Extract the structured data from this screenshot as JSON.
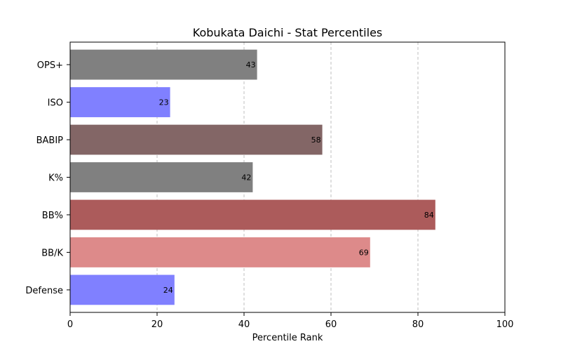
{
  "chart_data": {
    "type": "bar",
    "orientation": "horizontal",
    "title": "Kobukata Daichi - Stat Percentiles",
    "xlabel": "Percentile Rank",
    "ylabel": "",
    "xlim": [
      0,
      100
    ],
    "xticks": [
      0,
      20,
      40,
      60,
      80,
      100
    ],
    "grid": "x-dashed",
    "categories": [
      "OPS+",
      "ISO",
      "BABIP",
      "K%",
      "BB%",
      "BB/K",
      "Defense"
    ],
    "values": [
      43,
      23,
      58,
      42,
      84,
      69,
      24
    ],
    "colors": [
      "#808080",
      "#8080ff",
      "#836666",
      "#808080",
      "#ac5b5b",
      "#dd8a8a",
      "#8080ff"
    ]
  }
}
